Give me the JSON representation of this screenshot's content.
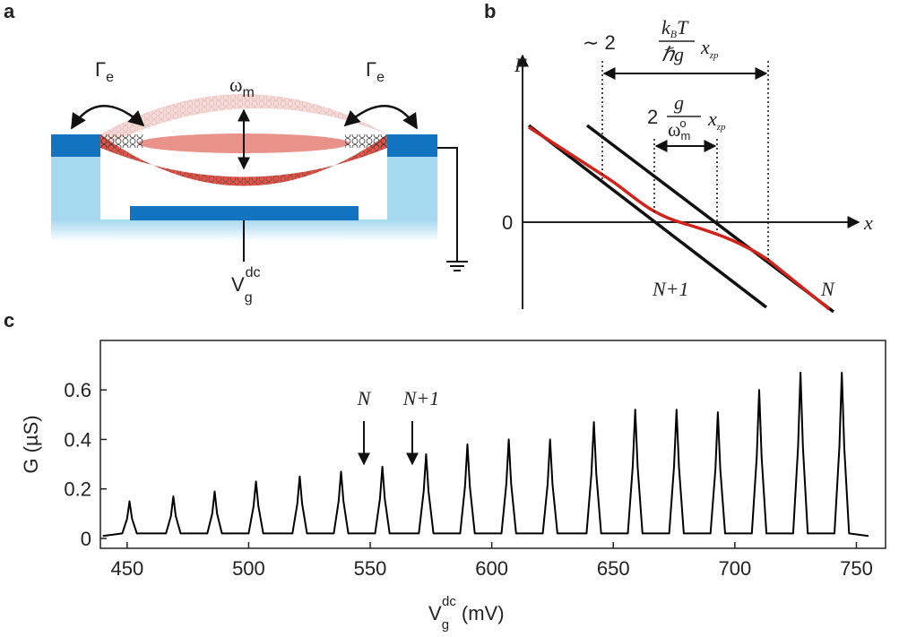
{
  "panel_labels": [
    "a",
    "b",
    "c"
  ],
  "panel_a": {
    "gamma_left": {
      "symbol": "Γ",
      "sub": "e"
    },
    "gamma_right": {
      "symbol": "Γ",
      "sub": "e"
    },
    "omega": {
      "symbol": "ω",
      "sub": "m"
    },
    "gate": {
      "symbol": "V",
      "sub": "g",
      "sup": "dc"
    }
  },
  "panel_b": {
    "y_label": "F",
    "x_label": "x",
    "zero": "0",
    "line_left": "N+1",
    "line_right": "N",
    "thermal": {
      "prefix": "∼ 2",
      "k": "k",
      "b": "B",
      "t": "T",
      "den": "ℏg",
      "x": "x",
      "zp": "zp"
    },
    "coupling": {
      "prefix": "2",
      "num": "g",
      "den": "ω",
      "den_sub": "m",
      "den_sup": "o",
      "x": "x",
      "zp": "zp"
    }
  },
  "chart_data": {
    "type": "line",
    "x_label": {
      "symbol": "V",
      "sub": "g",
      "sup": "dc",
      "unit": "(mV)"
    },
    "y_label": "G (µS)",
    "annotations": [
      "N",
      "N+1"
    ],
    "color": "#000000",
    "xlim": [
      439,
      762
    ],
    "ylim": [
      -0.04,
      0.8
    ],
    "xticks": [
      450,
      500,
      550,
      600,
      650,
      700,
      750
    ],
    "yticks": [
      0,
      0.2,
      0.4,
      0.6
    ],
    "x": [
      440,
      448,
      450,
      451,
      452,
      454,
      466,
      468,
      469,
      470,
      472,
      483,
      485,
      486,
      487,
      489,
      500,
      502,
      503,
      504,
      506,
      518,
      520,
      521,
      522,
      524,
      535,
      537,
      538,
      539,
      541,
      552,
      554,
      555,
      556,
      558,
      570,
      572,
      573,
      574,
      576,
      587,
      589,
      590,
      591,
      593,
      604,
      606,
      607,
      608,
      610,
      621,
      623,
      624,
      625,
      627,
      639,
      641,
      642,
      643,
      645,
      656,
      658,
      659,
      660,
      662,
      673,
      675,
      676,
      677,
      679,
      690,
      692,
      693,
      694,
      696,
      707,
      709,
      710,
      711,
      713,
      724,
      726,
      727,
      728,
      730,
      741,
      743,
      744,
      745,
      747,
      755
    ],
    "values": [
      0.01,
      0.02,
      0.08,
      0.15,
      0.08,
      0.02,
      0.02,
      0.09,
      0.17,
      0.09,
      0.02,
      0.02,
      0.1,
      0.19,
      0.1,
      0.02,
      0.02,
      0.13,
      0.23,
      0.13,
      0.02,
      0.02,
      0.14,
      0.25,
      0.14,
      0.02,
      0.02,
      0.15,
      0.27,
      0.15,
      0.02,
      0.02,
      0.16,
      0.29,
      0.16,
      0.02,
      0.02,
      0.19,
      0.34,
      0.19,
      0.02,
      0.02,
      0.21,
      0.38,
      0.21,
      0.02,
      0.02,
      0.22,
      0.4,
      0.22,
      0.02,
      0.02,
      0.22,
      0.4,
      0.22,
      0.02,
      0.02,
      0.26,
      0.47,
      0.26,
      0.02,
      0.02,
      0.29,
      0.52,
      0.29,
      0.02,
      0.02,
      0.29,
      0.52,
      0.29,
      0.02,
      0.02,
      0.28,
      0.51,
      0.28,
      0.02,
      0.02,
      0.33,
      0.6,
      0.33,
      0.02,
      0.02,
      0.37,
      0.67,
      0.37,
      0.02,
      0.02,
      0.37,
      0.67,
      0.37,
      0.02,
      0.01
    ]
  }
}
